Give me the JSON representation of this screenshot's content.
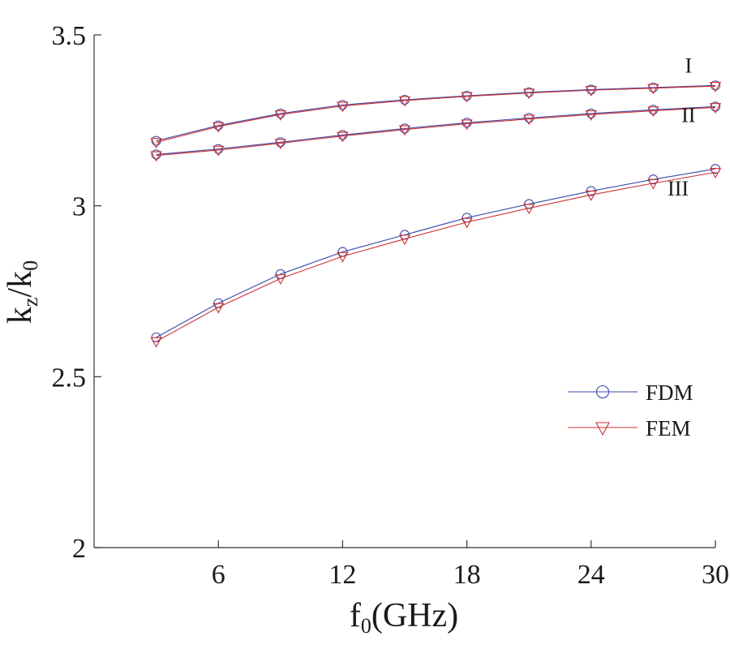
{
  "chart_data": {
    "type": "line",
    "title": "",
    "xlabel": "f0(GHz)",
    "xlabel_parts": {
      "base": "f",
      "sub": "0",
      "rest": "(GHz)"
    },
    "ylabel": "kz/k0",
    "ylabel_parts": {
      "base1": "k",
      "sub1": "z",
      "mid": "/k",
      "sub2": "0"
    },
    "xlim": [
      0,
      30
    ],
    "ylim": [
      2,
      3.5
    ],
    "xticks": [
      6,
      12,
      18,
      24,
      30
    ],
    "yticks": [
      2,
      2.5,
      3,
      3.5
    ],
    "ytick_labels": [
      "2",
      "2.5",
      "3",
      "3.5"
    ],
    "x": [
      3,
      6,
      9,
      12,
      15,
      18,
      21,
      24,
      27,
      30
    ],
    "series": [
      {
        "name": "FDM",
        "curve": "I",
        "color": "#3b4ba8",
        "marker": "circle",
        "values": [
          3.19,
          3.235,
          3.27,
          3.295,
          3.31,
          3.322,
          3.332,
          3.34,
          3.346,
          3.352
        ]
      },
      {
        "name": "FEM",
        "curve": "I",
        "color": "#d03030",
        "marker": "triangle-down",
        "values": [
          3.186,
          3.232,
          3.267,
          3.292,
          3.308,
          3.32,
          3.33,
          3.338,
          3.344,
          3.35
        ]
      },
      {
        "name": "FDM",
        "curve": "II",
        "color": "#3b4ba8",
        "marker": "circle",
        "values": [
          3.15,
          3.166,
          3.186,
          3.207,
          3.226,
          3.243,
          3.257,
          3.27,
          3.281,
          3.29
        ]
      },
      {
        "name": "FEM",
        "curve": "II",
        "color": "#d03030",
        "marker": "triangle-down",
        "values": [
          3.147,
          3.163,
          3.183,
          3.204,
          3.223,
          3.24,
          3.254,
          3.267,
          3.278,
          3.288
        ]
      },
      {
        "name": "FDM",
        "curve": "III",
        "color": "#3b4ba8",
        "marker": "circle",
        "values": [
          2.615,
          2.715,
          2.8,
          2.865,
          2.915,
          2.965,
          3.005,
          3.043,
          3.077,
          3.108
        ]
      },
      {
        "name": "FEM",
        "curve": "III",
        "color": "#d03030",
        "marker": "triangle-down",
        "values": [
          2.603,
          2.703,
          2.787,
          2.852,
          2.903,
          2.952,
          2.993,
          3.032,
          3.066,
          3.098
        ]
      }
    ],
    "annotations": [
      {
        "text": "I",
        "x": 28.7,
        "y": 3.39
      },
      {
        "text": "II",
        "x": 28.7,
        "y": 3.245
      },
      {
        "text": "III",
        "x": 28.2,
        "y": 3.03
      }
    ],
    "legend": {
      "position": "right-middle",
      "entries": [
        {
          "label": "FDM",
          "color": "#3b4ba8",
          "marker": "circle"
        },
        {
          "label": "FEM",
          "color": "#d03030",
          "marker": "triangle-down"
        }
      ]
    },
    "grid": false
  }
}
